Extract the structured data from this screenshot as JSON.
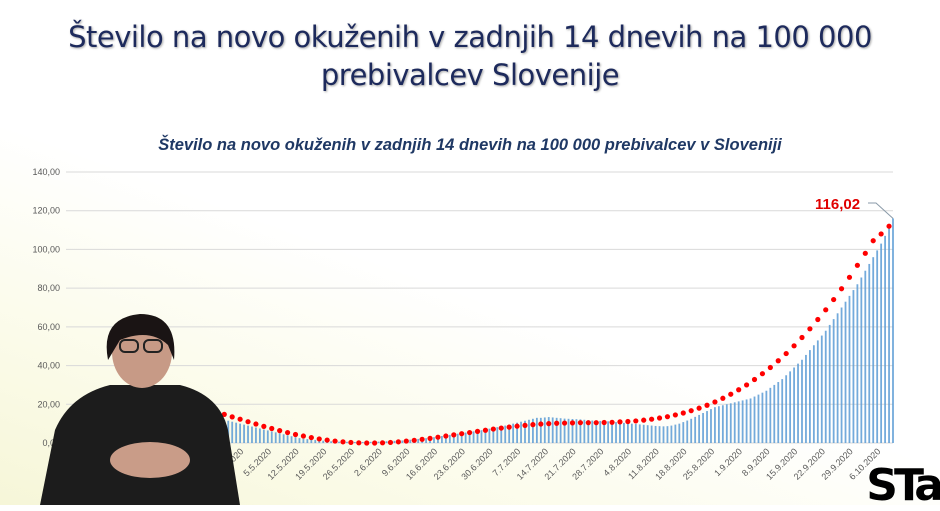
{
  "header": {
    "title_line1": "Število na novo okuženih v zadnjih 14 dnevih na 100 000",
    "title_line2": "prebivalcev Slovenije"
  },
  "logo_text": "STA",
  "chart_data": {
    "type": "bar",
    "title": "Število na novo okuženih v zadnjih 14 dnevih na 100 000 prebivalcev v Sloveniji",
    "xlabel": "",
    "ylabel": "",
    "ylim": [
      0,
      140
    ],
    "yticks": [
      "0,00",
      "20,00",
      "40,00",
      "60,00",
      "80,00",
      "100,00",
      "120,00",
      "140,00"
    ],
    "xtick_labels": [
      "28.4.2020",
      "5.5.2020",
      "12.5.2020",
      "19.5.2020",
      "26.5.2020",
      "2.6.2020",
      "9.6.2020",
      "16.6.2020",
      "23.6.2020",
      "30.6.2020",
      "7.7.2020",
      "14.7.2020",
      "21.7.2020",
      "28.7.2020",
      "4.8.2020",
      "11.8.2020",
      "18.8.2020",
      "25.8.2020",
      "1.9.2020",
      "8.9.2020",
      "15.9.2020",
      "22.9.2020",
      "29.9.2020",
      "6.10.2020"
    ],
    "grid": true,
    "bar_color": "#5b9bd5",
    "trend_color": "#ff0000",
    "series": [
      {
        "kind": "bars",
        "values": [
          7,
          8,
          9,
          10,
          11,
          12,
          13,
          14,
          15,
          16,
          17,
          18,
          19,
          19.5,
          20,
          20.5,
          21,
          21,
          21.5,
          22,
          22,
          22,
          21.5,
          21,
          20.5,
          20,
          19.5,
          19,
          18.5,
          18,
          17.5,
          17,
          16.5,
          16,
          15.5,
          15,
          14.5,
          14,
          13,
          12.5,
          12,
          11.5,
          11,
          10.5,
          10,
          9.5,
          9,
          8.5,
          8,
          7.5,
          7,
          6.5,
          6,
          5.5,
          5,
          4.5,
          4,
          3.5,
          3,
          2.5,
          2.2,
          2,
          1.8,
          1.6,
          1.4,
          1.2,
          1,
          0.9,
          0.8,
          0.7,
          0.6,
          0.6,
          0.5,
          0.5,
          0.5,
          0.5,
          0.6,
          0.6,
          0.7,
          0.7,
          0.8,
          0.9,
          1,
          1.1,
          1.2,
          1.3,
          1.5,
          1.7,
          1.9,
          2.1,
          2.3,
          2.5,
          2.8,
          3,
          3.3,
          3.6,
          3.9,
          4.2,
          4.5,
          4.8,
          5.1,
          5.4,
          5.7,
          6,
          6.3,
          6.6,
          7,
          7.4,
          7.8,
          8.2,
          8.6,
          9,
          9.5,
          10,
          10.5,
          11,
          11.5,
          12,
          12.5,
          13,
          13,
          13.2,
          13.4,
          13.2,
          13,
          12.8,
          12.6,
          12.5,
          12.4,
          12.3,
          12.2,
          12,
          11.8,
          11.6,
          11.5,
          11.4,
          11.3,
          11.2,
          11,
          10.8,
          10.6,
          10.4,
          10.2,
          10,
          9.8,
          9.6,
          9.4,
          9.2,
          9,
          8.8,
          8.7,
          8.6,
          8.7,
          9,
          9.5,
          10,
          10.8,
          11.6,
          12.5,
          13.5,
          14.5,
          15.5,
          16.5,
          17.5,
          18.5,
          19,
          19.5,
          20,
          20.5,
          21,
          21.5,
          22,
          22.5,
          23,
          24,
          25,
          26,
          27,
          28.5,
          30,
          31.5,
          33,
          35,
          37,
          39,
          41,
          43,
          45.5,
          48,
          50.5,
          53,
          55.5,
          58,
          61,
          64,
          67,
          70,
          73,
          76,
          79,
          82,
          85.5,
          89,
          92.5,
          96,
          99.5,
          103,
          107,
          111.5,
          116.02
        ]
      },
      {
        "kind": "trend-dots",
        "values": [
          9,
          12,
          15,
          17.5,
          19.5,
          21,
          22.5,
          23.5,
          24,
          24.5,
          24.5,
          24,
          23.5,
          22.5,
          21.5,
          20.5,
          19.5,
          18.5,
          17,
          16,
          14.8,
          13.5,
          12.3,
          11,
          9.8,
          8.6,
          7.5,
          6.4,
          5.4,
          4.4,
          3.6,
          2.8,
          2.1,
          1.5,
          1,
          0.6,
          0.3,
          0.1,
          0,
          0,
          0.1,
          0.3,
          0.6,
          1,
          1.4,
          1.9,
          2.4,
          3,
          3.6,
          4.2,
          4.8,
          5.4,
          6,
          6.6,
          7.2,
          7.7,
          8.2,
          8.7,
          9.1,
          9.5,
          9.8,
          10,
          10.2,
          10.3,
          10.4,
          10.5,
          10.5,
          10.5,
          10.6,
          10.7,
          10.9,
          11.1,
          11.4,
          11.8,
          12.3,
          12.9,
          13.6,
          14.5,
          15.5,
          16.7,
          18,
          19.5,
          21.2,
          23.1,
          25.2,
          27.5,
          30,
          32.8,
          35.8,
          39,
          42.5,
          46.2,
          50.2,
          54.5,
          59,
          63.8,
          68.8,
          74.1,
          79.7,
          85.6,
          91.8,
          98,
          104.5,
          108,
          112
        ]
      }
    ],
    "annotation": {
      "label": "116,02"
    }
  }
}
